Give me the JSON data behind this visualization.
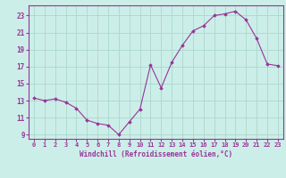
{
  "x": [
    0,
    1,
    2,
    3,
    4,
    5,
    6,
    7,
    8,
    9,
    10,
    11,
    12,
    13,
    14,
    15,
    16,
    17,
    18,
    19,
    20,
    21,
    22,
    23
  ],
  "y": [
    13.3,
    13.0,
    13.2,
    12.8,
    12.1,
    10.7,
    10.3,
    10.1,
    9.0,
    10.5,
    12.0,
    17.2,
    14.5,
    17.5,
    19.5,
    21.2,
    21.8,
    23.0,
    23.2,
    23.5,
    22.5,
    20.3,
    17.3,
    17.1
  ],
  "line_color": "#993399",
  "marker": "D",
  "marker_size": 1.8,
  "bg_color": "#cceee8",
  "grid_color": "#aad8cc",
  "xlabel": "Windchill (Refroidissement éolien,°C)",
  "xlabel_color": "#993399",
  "tick_color": "#993399",
  "ylim": [
    8.5,
    24.2
  ],
  "xlim": [
    -0.5,
    23.5
  ],
  "yticks": [
    9,
    11,
    13,
    15,
    17,
    19,
    21,
    23
  ],
  "xticks": [
    0,
    1,
    2,
    3,
    4,
    5,
    6,
    7,
    8,
    9,
    10,
    11,
    12,
    13,
    14,
    15,
    16,
    17,
    18,
    19,
    20,
    21,
    22,
    23
  ],
  "xticklabels": [
    "0",
    "1",
    "2",
    "3",
    "4",
    "5",
    "6",
    "7",
    "8",
    "9",
    "10",
    "11",
    "12",
    "13",
    "14",
    "15",
    "16",
    "17",
    "18",
    "19",
    "20",
    "21",
    "22",
    "23"
  ]
}
